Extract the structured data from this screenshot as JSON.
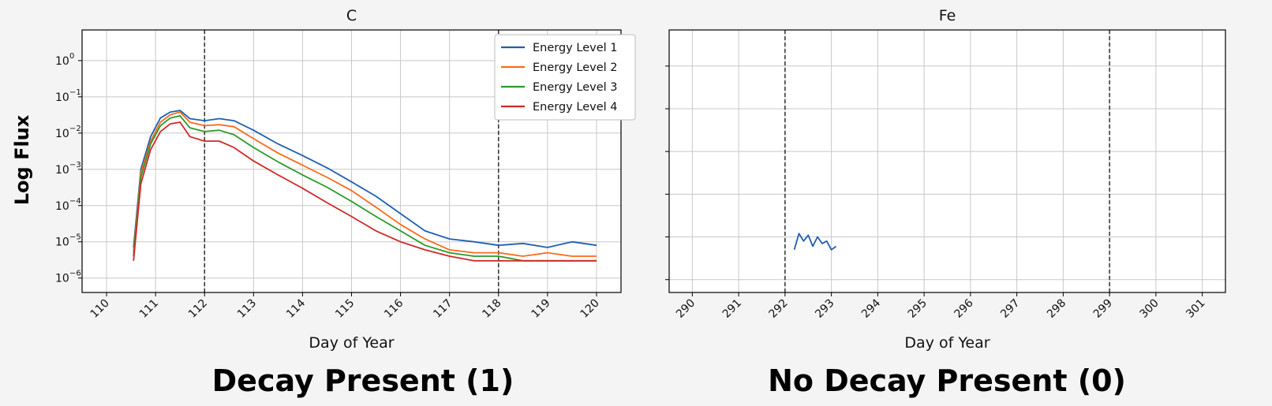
{
  "ylabel": "Log Flux",
  "chart_data": [
    {
      "type": "line",
      "title": "C",
      "xlabel": "Day of Year",
      "ylabel": "Log Flux",
      "yscale": "log",
      "xlim": [
        109.5,
        120.5
      ],
      "ylim": [
        4e-07,
        7
      ],
      "x_ticks": [
        110,
        111,
        112,
        113,
        114,
        115,
        116,
        117,
        118,
        119,
        120
      ],
      "x_tick_labels": [
        "110",
        "111",
        "112",
        "113",
        "114",
        "115",
        "116",
        "117",
        "118",
        "119",
        "120"
      ],
      "y_ticks": [
        1e-06,
        1e-05,
        0.0001,
        0.001,
        0.01,
        0.1,
        1
      ],
      "y_tick_labels": [
        [
          "10",
          "−6"
        ],
        [
          "10",
          "−5"
        ],
        [
          "10",
          "−4"
        ],
        [
          "10",
          "−3"
        ],
        [
          "10",
          "−2"
        ],
        [
          "10",
          "−1"
        ],
        [
          "10",
          "0"
        ]
      ],
      "vlines": [
        112,
        118
      ],
      "grid": true,
      "legend": "top-right",
      "series": [
        {
          "name": "Energy Level 1",
          "color": "#1f5fb0",
          "x": [
            110.55,
            110.7,
            110.9,
            111.1,
            111.3,
            111.5,
            111.7,
            112.0,
            112.3,
            112.6,
            113.0,
            113.5,
            114.0,
            114.5,
            115.0,
            115.5,
            116.0,
            116.5,
            117.0,
            117.5,
            118.0,
            118.5,
            119.0,
            119.5,
            120.0
          ],
          "y": [
            7e-06,
            0.001,
            0.008,
            0.026,
            0.038,
            0.042,
            0.025,
            0.022,
            0.025,
            0.022,
            0.012,
            0.005,
            0.0024,
            0.0011,
            0.00045,
            0.00018,
            6e-05,
            2e-05,
            1.2e-05,
            1e-05,
            8e-06,
            9e-06,
            7e-06,
            1e-05,
            8e-06
          ]
        },
        {
          "name": "Energy Level 2",
          "color": "#ff6a1a",
          "x": [
            110.55,
            110.7,
            110.9,
            111.1,
            111.3,
            111.5,
            111.7,
            112.0,
            112.3,
            112.6,
            113.0,
            113.5,
            114.0,
            114.5,
            115.0,
            115.5,
            116.0,
            116.5,
            117.0,
            117.5,
            118.0,
            118.5,
            119.0,
            119.5,
            120.0
          ],
          "y": [
            5e-06,
            0.0008,
            0.006,
            0.02,
            0.032,
            0.038,
            0.02,
            0.016,
            0.017,
            0.015,
            0.007,
            0.0028,
            0.0013,
            0.0006,
            0.00026,
            9e-05,
            3e-05,
            1.2e-05,
            6e-06,
            5e-06,
            5e-06,
            4e-06,
            5e-06,
            4e-06,
            4e-06
          ]
        },
        {
          "name": "Energy Level 3",
          "color": "#2a9a2a",
          "x": [
            110.55,
            110.7,
            110.9,
            111.1,
            111.3,
            111.5,
            111.7,
            112.0,
            112.3,
            112.6,
            113.0,
            113.5,
            114.0,
            114.5,
            115.0,
            115.5,
            116.0,
            116.5,
            117.0,
            117.5,
            118.0,
            118.5,
            119.0,
            119.5,
            120.0
          ],
          "y": [
            4e-06,
            0.0006,
            0.005,
            0.016,
            0.026,
            0.03,
            0.014,
            0.011,
            0.012,
            0.009,
            0.004,
            0.0016,
            0.0007,
            0.00032,
            0.00013,
            5e-05,
            2e-05,
            8e-06,
            5e-06,
            4e-06,
            4e-06,
            3e-06,
            3e-06,
            3e-06,
            3e-06
          ]
        },
        {
          "name": "Energy Level 4",
          "color": "#d02828",
          "x": [
            110.55,
            110.7,
            110.9,
            111.1,
            111.3,
            111.5,
            111.7,
            112.0,
            112.3,
            112.6,
            113.0,
            113.5,
            114.0,
            114.5,
            115.0,
            115.5,
            116.0,
            116.5,
            117.0,
            117.5,
            118.0,
            118.5,
            119.0,
            119.5,
            120.0
          ],
          "y": [
            3e-06,
            0.0004,
            0.0035,
            0.011,
            0.018,
            0.02,
            0.008,
            0.006,
            0.006,
            0.004,
            0.0017,
            0.0007,
            0.0003,
            0.00012,
            5e-05,
            2e-05,
            1e-05,
            6e-06,
            4e-06,
            3e-06,
            3e-06,
            3e-06,
            3e-06,
            3e-06,
            3e-06
          ]
        }
      ]
    },
    {
      "type": "line",
      "title": "Fe",
      "xlabel": "Day of Year",
      "ylabel": "Log Flux",
      "yscale": "log",
      "xlim": [
        289.5,
        301.5
      ],
      "ylim": [
        5e-07,
        0.7
      ],
      "x_ticks": [
        290,
        291,
        292,
        293,
        294,
        295,
        296,
        297,
        298,
        299,
        300,
        301
      ],
      "x_tick_labels": [
        "290",
        "291",
        "292",
        "293",
        "294",
        "295",
        "296",
        "297",
        "298",
        "299",
        "300",
        "301"
      ],
      "y_ticks": [
        1e-06,
        1e-05,
        0.0001,
        0.001,
        0.01,
        0.1
      ],
      "vlines": [
        292,
        299
      ],
      "grid": true,
      "series": [
        {
          "name": "Energy Level 1",
          "color": "#1f5fb0",
          "x": [
            292.2,
            292.3,
            292.4,
            292.5,
            292.6,
            292.7,
            292.8,
            292.9,
            293.0,
            293.1
          ],
          "y": [
            5e-06,
            1.2e-05,
            8e-06,
            1.1e-05,
            6e-06,
            1e-05,
            7e-06,
            8e-06,
            5e-06,
            6e-06
          ]
        }
      ]
    }
  ],
  "captions": {
    "left": "Decay Present (1)",
    "right": "No Decay Present (0)"
  }
}
